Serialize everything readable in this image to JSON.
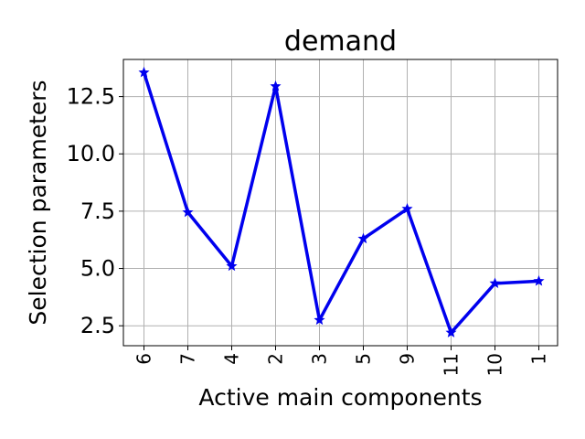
{
  "chart_data": {
    "type": "line",
    "title": "demand",
    "xlabel": "Active main components",
    "ylabel": "Selection parameters",
    "categories": [
      "6",
      "7",
      "4",
      "2",
      "3",
      "5",
      "9",
      "11",
      "10",
      "1"
    ],
    "series": [
      {
        "values": [
          13.55,
          7.45,
          5.1,
          12.95,
          2.75,
          6.3,
          7.6,
          2.2,
          4.35,
          4.45
        ],
        "color": "#0000ee",
        "marker": "star"
      }
    ],
    "yticks": [
      2.5,
      5.0,
      7.5,
      10.0,
      12.5
    ],
    "ytick_labels": [
      "2.5",
      "5.0",
      "7.5",
      "10.0",
      "12.5"
    ],
    "ylim": [
      1.63,
      14.12
    ],
    "grid": true,
    "legend": "none"
  }
}
